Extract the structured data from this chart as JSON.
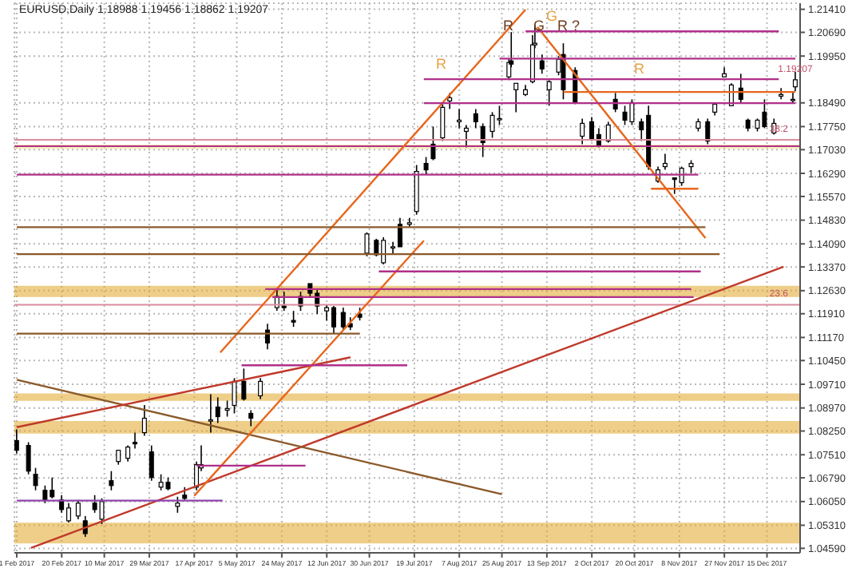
{
  "chart_data": {
    "type": "candlestick",
    "title": "EURUSD,Daily  1.18988 1.19456 1.18862 1.19207",
    "xlim": [
      "2017-01-31",
      "2017-12-29"
    ],
    "xticks": [
      {
        "value": "2017-02-01",
        "label": "1 Feb 2017"
      },
      {
        "value": "2017-02-20",
        "label": "20 Feb 2017"
      },
      {
        "value": "2017-03-10",
        "label": "10 Mar 2017"
      },
      {
        "value": "2017-03-29",
        "label": "29 Mar 2017"
      },
      {
        "value": "2017-04-17",
        "label": "17 Apr 2017"
      },
      {
        "value": "2017-05-05",
        "label": "5 May 2017"
      },
      {
        "value": "2017-05-24",
        "label": "24 May 2017"
      },
      {
        "value": "2017-06-12",
        "label": "12 Jun 2017"
      },
      {
        "value": "2017-06-30",
        "label": "30 Jun 2017"
      },
      {
        "value": "2017-07-19",
        "label": "19 Jul 2017"
      },
      {
        "value": "2017-08-07",
        "label": "7 Aug 2017"
      },
      {
        "value": "2017-08-25",
        "label": "25 Aug 2017"
      },
      {
        "value": "2017-09-13",
        "label": "13 Sep 2017"
      },
      {
        "value": "2017-10-02",
        "label": "2 Oct 2017"
      },
      {
        "value": "2017-10-20",
        "label": "20 Oct 2017"
      },
      {
        "value": "2017-11-08",
        "label": "8 Nov 2017"
      },
      {
        "value": "2017-11-27",
        "label": "27 Nov 2017"
      },
      {
        "value": "2017-12-15",
        "label": "15 Dec 2017"
      }
    ],
    "ylim": [
      1.0445,
      1.216
    ],
    "yticks": [
      {
        "value": 1.0459,
        "label": "1.04590"
      },
      {
        "value": 1.0531,
        "label": "1.05310"
      },
      {
        "value": 1.0605,
        "label": "1.06050"
      },
      {
        "value": 1.0679,
        "label": "1.06790"
      },
      {
        "value": 1.0751,
        "label": "1.07510"
      },
      {
        "value": 1.0825,
        "label": "1.08250"
      },
      {
        "value": 1.0897,
        "label": "1.08970"
      },
      {
        "value": 1.0971,
        "label": "1.09710"
      },
      {
        "value": 1.1045,
        "label": "1.10450"
      },
      {
        "value": 1.1117,
        "label": "1.11170"
      },
      {
        "value": 1.1191,
        "label": "1.11910"
      },
      {
        "value": 1.1263,
        "label": "1.12630"
      },
      {
        "value": 1.1337,
        "label": "1.13370"
      },
      {
        "value": 1.1409,
        "label": "1.14090"
      },
      {
        "value": 1.1483,
        "label": "1.14830"
      },
      {
        "value": 1.1557,
        "label": "1.15570"
      },
      {
        "value": 1.1629,
        "label": "1.16290"
      },
      {
        "value": 1.1703,
        "label": "1.17030"
      },
      {
        "value": 1.1775,
        "label": "1.17750"
      },
      {
        "value": 1.1849,
        "label": "1.18490"
      },
      {
        "value": 1.1995,
        "label": "1.19950"
      },
      {
        "value": 1.2069,
        "label": "1.20690"
      },
      {
        "value": 1.2141,
        "label": "1.21410"
      }
    ],
    "grid": true,
    "legend": false,
    "series": [
      {
        "color": "#000000",
        "x": [
          "2017-02-01",
          "2017-02-06",
          "2017-02-09",
          "2017-02-13",
          "2017-02-16",
          "2017-02-20",
          "2017-02-23",
          "2017-02-27",
          "2017-03-02",
          "2017-03-06",
          "2017-03-09",
          "2017-03-13",
          "2017-03-16",
          "2017-03-20",
          "2017-03-23",
          "2017-03-27",
          "2017-03-30",
          "2017-04-03",
          "2017-04-06",
          "2017-04-10",
          "2017-04-13",
          "2017-04-18",
          "2017-04-20",
          "2017-04-24",
          "2017-04-27",
          "2017-05-01",
          "2017-05-04",
          "2017-05-08",
          "2017-05-11",
          "2017-05-15",
          "2017-05-18",
          "2017-05-22",
          "2017-05-25",
          "2017-05-29",
          "2017-06-01",
          "2017-06-05",
          "2017-06-08",
          "2017-06-12",
          "2017-06-15",
          "2017-06-19",
          "2017-06-22",
          "2017-06-26",
          "2017-06-29",
          "2017-07-03",
          "2017-07-06",
          "2017-07-10",
          "2017-07-13",
          "2017-07-17",
          "2017-07-20",
          "2017-07-24",
          "2017-07-27",
          "2017-07-31",
          "2017-08-03",
          "2017-08-07",
          "2017-08-10",
          "2017-08-14",
          "2017-08-17",
          "2017-08-21",
          "2017-08-24",
          "2017-08-28",
          "2017-08-29",
          "2017-08-31",
          "2017-09-04",
          "2017-09-07",
          "2017-09-08",
          "2017-09-11",
          "2017-09-14",
          "2017-09-18",
          "2017-09-20",
          "2017-09-25",
          "2017-09-28",
          "2017-10-02",
          "2017-10-05",
          "2017-10-09",
          "2017-10-12",
          "2017-10-16",
          "2017-10-19",
          "2017-10-23",
          "2017-10-26",
          "2017-10-30",
          "2017-11-02",
          "2017-11-06",
          "2017-11-09",
          "2017-11-13",
          "2017-11-16",
          "2017-11-20",
          "2017-11-23",
          "2017-11-27",
          "2017-11-30",
          "2017-12-04",
          "2017-12-07",
          "2017-12-11",
          "2017-12-14",
          "2017-12-18",
          "2017-12-21",
          "2017-12-26",
          "2017-12-27"
        ],
        "ohlc": [
          [
            1.0795,
            1.083,
            1.0755,
            1.0765
          ],
          [
            1.078,
            1.079,
            1.069,
            1.07
          ],
          [
            1.069,
            1.071,
            1.064,
            1.0655
          ],
          [
            1.064,
            1.0655,
            1.06,
            1.061
          ],
          [
            1.064,
            1.068,
            1.0615,
            1.062
          ],
          [
            1.061,
            1.0625,
            1.057,
            1.058
          ],
          [
            1.0545,
            1.06,
            1.054,
            1.0585
          ],
          [
            1.056,
            1.061,
            1.055,
            1.06
          ],
          [
            1.0545,
            1.056,
            1.0495,
            1.0505
          ],
          [
            1.06,
            1.0625,
            1.057,
            1.058
          ],
          [
            1.055,
            1.0615,
            1.0535,
            1.0605
          ],
          [
            1.067,
            1.07,
            1.064,
            1.0655
          ],
          [
            1.073,
            1.0765,
            1.072,
            1.0765
          ],
          [
            1.074,
            1.078,
            1.073,
            1.0775
          ],
          [
            1.079,
            1.082,
            1.077,
            1.0785
          ],
          [
            1.082,
            1.0906,
            1.081,
            1.0865
          ],
          [
            1.076,
            1.078,
            1.067,
            1.068
          ],
          [
            1.065,
            1.069,
            1.064,
            1.0665
          ],
          [
            1.0665,
            1.068,
            1.064,
            1.0645
          ],
          [
            1.059,
            1.062,
            1.057,
            1.06
          ],
          [
            1.0625,
            1.065,
            1.061,
            1.0615
          ],
          [
            1.065,
            1.073,
            1.064,
            1.072
          ],
          [
            1.071,
            1.078,
            1.07,
            1.072
          ],
          [
            1.086,
            1.094,
            1.082,
            1.086
          ],
          [
            1.09,
            1.093,
            1.085,
            1.087
          ],
          [
            1.089,
            1.092,
            1.087,
            1.0895
          ],
          [
            1.0905,
            1.099,
            1.088,
            1.098
          ],
          [
            1.098,
            1.102,
            1.092,
            1.0925
          ],
          [
            1.088,
            1.089,
            1.084,
            1.0865
          ],
          [
            1.0935,
            1.099,
            1.0925,
            1.098
          ],
          [
            1.114,
            1.116,
            1.108,
            1.11
          ],
          [
            1.121,
            1.1265,
            1.12,
            1.1245
          ],
          [
            1.1215,
            1.126,
            1.12,
            1.121
          ],
          [
            1.117,
            1.12,
            1.115,
            1.1165
          ],
          [
            1.1245,
            1.126,
            1.12,
            1.1215
          ],
          [
            1.1285,
            1.1285,
            1.1245,
            1.1255
          ],
          [
            1.1255,
            1.1265,
            1.119,
            1.1215
          ],
          [
            1.12,
            1.122,
            1.117,
            1.121
          ],
          [
            1.121,
            1.1215,
            1.113,
            1.115
          ],
          [
            1.1195,
            1.121,
            1.114,
            1.115
          ],
          [
            1.116,
            1.118,
            1.114,
            1.115
          ],
          [
            1.119,
            1.121,
            1.117,
            1.118
          ],
          [
            1.138,
            1.1445,
            1.137,
            1.144
          ],
          [
            1.142,
            1.1425,
            1.137,
            1.1375
          ],
          [
            1.135,
            1.143,
            1.1345,
            1.142
          ],
          [
            1.14,
            1.1415,
            1.138,
            1.14
          ],
          [
            1.147,
            1.149,
            1.14,
            1.14
          ],
          [
            1.147,
            1.149,
            1.146,
            1.1475
          ],
          [
            1.151,
            1.1655,
            1.15,
            1.1635
          ],
          [
            1.166,
            1.168,
            1.1625,
            1.164
          ],
          [
            1.172,
            1.1775,
            1.167,
            1.1675
          ],
          [
            1.174,
            1.1845,
            1.173,
            1.1835
          ],
          [
            1.1855,
            1.188,
            1.183,
            1.1865
          ],
          [
            1.179,
            1.183,
            1.177,
            1.1795
          ],
          [
            1.176,
            1.178,
            1.171,
            1.177
          ],
          [
            1.1815,
            1.183,
            1.177,
            1.179
          ],
          [
            1.1775,
            1.1785,
            1.168,
            1.1725
          ],
          [
            1.176,
            1.182,
            1.174,
            1.181
          ],
          [
            1.18,
            1.184,
            1.178,
            1.18
          ],
          [
            1.193,
            1.1985,
            1.192,
            1.1975
          ],
          [
            1.198,
            1.207,
            1.196,
            1.197
          ],
          [
            1.189,
            1.191,
            1.182,
            1.191
          ],
          [
            1.1875,
            1.1905,
            1.187,
            1.189
          ],
          [
            1.1915,
            1.206,
            1.191,
            1.203
          ],
          [
            1.203,
            1.2092,
            1.202,
            1.2035
          ],
          [
            1.198,
            1.2,
            1.194,
            1.1955
          ],
          [
            1.189,
            1.192,
            1.184,
            1.1915
          ],
          [
            1.1945,
            1.1995,
            1.1935,
            1.1985
          ],
          [
            1.2,
            1.2035,
            1.186,
            1.189
          ],
          [
            1.195,
            1.196,
            1.1845,
            1.185
          ],
          [
            1.1745,
            1.18,
            1.172,
            1.1785
          ],
          [
            1.179,
            1.1805,
            1.173,
            1.1735
          ],
          [
            1.175,
            1.177,
            1.171,
            1.1715
          ],
          [
            1.173,
            1.179,
            1.1725,
            1.178
          ],
          [
            1.186,
            1.188,
            1.182,
            1.183
          ],
          [
            1.182,
            1.184,
            1.178,
            1.1795
          ],
          [
            1.179,
            1.186,
            1.178,
            1.185
          ],
          [
            1.179,
            1.18,
            1.173,
            1.1765
          ],
          [
            1.181,
            1.184,
            1.164,
            1.165
          ],
          [
            1.1605,
            1.165,
            1.16,
            1.164
          ],
          [
            1.165,
            1.169,
            1.164,
            1.166
          ],
          [
            1.1615,
            1.1615,
            1.1565,
            1.161
          ],
          [
            1.16,
            1.165,
            1.159,
            1.1645
          ],
          [
            1.165,
            1.167,
            1.163,
            1.166
          ],
          [
            1.177,
            1.18,
            1.176,
            1.179
          ],
          [
            1.179,
            1.18,
            1.172,
            1.173
          ],
          [
            1.182,
            1.185,
            1.181,
            1.1845
          ],
          [
            1.193,
            1.196,
            1.193,
            1.194
          ],
          [
            1.184,
            1.191,
            1.184,
            1.1905
          ],
          [
            1.1895,
            1.194,
            1.185,
            1.186
          ],
          [
            1.1795,
            1.18,
            1.176,
            1.177
          ],
          [
            1.177,
            1.18,
            1.176,
            1.1795
          ],
          [
            1.182,
            1.186,
            1.177,
            1.1775
          ],
          [
            1.1755,
            1.18,
            1.175,
            1.1785
          ],
          [
            1.187,
            1.1895,
            1.186,
            1.1875
          ],
          [
            1.186,
            1.1886,
            1.185,
            1.186
          ],
          [
            1.1899,
            1.1946,
            1.1886,
            1.1921
          ]
        ]
      },
      {
        "type": "line",
        "color": "#c0392b",
        "x": [
          "2017-02-07",
          "2017-12-22"
        ],
        "values": [
          1.046,
          1.1338
        ]
      },
      {
        "type": "line",
        "color": "#8b5a2b",
        "x": [
          "2017-02-01",
          "2017-08-25"
        ],
        "values": [
          1.0985,
          1.0628
        ]
      },
      {
        "type": "line",
        "color": "#c0392b",
        "x": [
          "2017-02-01",
          "2017-06-22"
        ],
        "values": [
          1.0837,
          1.1055
        ]
      },
      {
        "type": "line",
        "color": "#e8661c",
        "x": [
          "2017-04-17",
          "2017-07-23"
        ],
        "values": [
          1.0623,
          1.1419
        ]
      },
      {
        "type": "line",
        "color": "#e8661c",
        "x": [
          "2017-04-28",
          "2017-09-04"
        ],
        "values": [
          1.107,
          1.214
        ]
      },
      {
        "type": "line",
        "color": "#e8661c",
        "x": [
          "2017-09-09",
          "2017-11-19"
        ],
        "values": [
          1.2086,
          1.1427
        ]
      },
      {
        "type": "line",
        "color": "#b0308a",
        "x": [
          "2017-09-04",
          "2017-12-20"
        ],
        "values": [
          1.2072,
          1.2072
        ]
      },
      {
        "type": "line",
        "color": "#b0308a",
        "x": [
          "2017-08-24",
          "2017-12-27"
        ],
        "values": [
          1.1987,
          1.1987
        ]
      },
      {
        "type": "line",
        "color": "#b0308a",
        "x": [
          "2017-07-23",
          "2017-12-20"
        ],
        "values": [
          1.1923,
          1.1923
        ]
      },
      {
        "type": "line",
        "color": "#e8661c",
        "x": [
          "2017-09-20",
          "2017-12-27"
        ],
        "values": [
          1.1883,
          1.1883
        ]
      },
      {
        "type": "line",
        "color": "#b0308a",
        "x": [
          "2017-07-23",
          "2017-12-27"
        ],
        "values": [
          1.1848,
          1.1848
        ]
      },
      {
        "type": "line",
        "color": "#b0308a",
        "x": [
          "2017-02-01",
          "2017-11-16"
        ],
        "values": [
          1.1625,
          1.1625
        ]
      },
      {
        "type": "line",
        "color": "#e8661c",
        "x": [
          "2017-10-27",
          "2017-11-16"
        ],
        "values": [
          1.1581,
          1.1581
        ]
      },
      {
        "type": "line",
        "color": "#8b5a2b",
        "x": [
          "2017-02-01",
          "2017-11-19"
        ],
        "values": [
          1.1461,
          1.1461
        ]
      },
      {
        "type": "line",
        "color": "#8b5a2b",
        "x": [
          "2017-02-01",
          "2017-11-25"
        ],
        "values": [
          1.1377,
          1.1377
        ]
      },
      {
        "type": "line",
        "color": "#b0308a",
        "x": [
          "2017-07-04",
          "2017-11-17"
        ],
        "values": [
          1.1323,
          1.1323
        ]
      },
      {
        "type": "line",
        "color": "#b0308a",
        "x": [
          "2017-05-17",
          "2017-11-13"
        ],
        "values": [
          1.1268,
          1.1268
        ]
      },
      {
        "type": "line",
        "color": "#b0308a",
        "x": [
          "2017-05-20",
          "2017-11-14"
        ],
        "values": [
          1.1243,
          1.1243
        ]
      },
      {
        "type": "line",
        "color": "#b0308a",
        "x": [
          "2017-05-07",
          "2017-07-16"
        ],
        "values": [
          1.103,
          1.103
        ]
      },
      {
        "type": "line",
        "color": "#8b5a2b",
        "x": [
          "2017-02-01",
          "2017-06-26"
        ],
        "values": [
          1.1129,
          1.1129
        ]
      },
      {
        "type": "line",
        "color": "#b0308a",
        "x": [
          "2017-04-18",
          "2017-06-03"
        ],
        "values": [
          1.0717,
          1.0717
        ]
      },
      {
        "type": "line",
        "color": "#8e44ad",
        "x": [
          "2017-02-01",
          "2017-04-29"
        ],
        "values": [
          1.0608,
          1.0608
        ]
      }
    ],
    "ref_lines": [
      {
        "axis": "y",
        "value": 1.1734,
        "color": "#d98ca0"
      },
      {
        "axis": "y",
        "value": 1.1714,
        "color": "#b0308a"
      },
      {
        "axis": "y",
        "value": 1.1219,
        "color": "#d98ca0"
      }
    ],
    "bands": [
      {
        "axis": "y",
        "from": 1.0919,
        "to": 1.0942,
        "color": "#e0a526"
      },
      {
        "axis": "y",
        "from": 1.0817,
        "to": 1.0856,
        "color": "#e0a526"
      },
      {
        "axis": "y",
        "from": 1.0474,
        "to": 1.0539,
        "color": "#e0a526"
      },
      {
        "axis": "y",
        "from": 1.1243,
        "to": 1.1278,
        "color": "#e0a526"
      },
      {
        "axis": "y",
        "from": 1.1705,
        "to": 1.1719,
        "color": "#f3e08a"
      }
    ],
    "annotations": [
      "R",
      "R",
      "G",
      "G",
      "R",
      "?",
      "R",
      {
        "text": "38.2",
        "x": "2017-12-20",
        "y": 1.1734
      },
      {
        "text": "23.6",
        "x": "2017-12-20",
        "y": 1.1219
      },
      {
        "text": "1.19207",
        "x": "2017-12-27",
        "y": 1.19207
      }
    ]
  }
}
